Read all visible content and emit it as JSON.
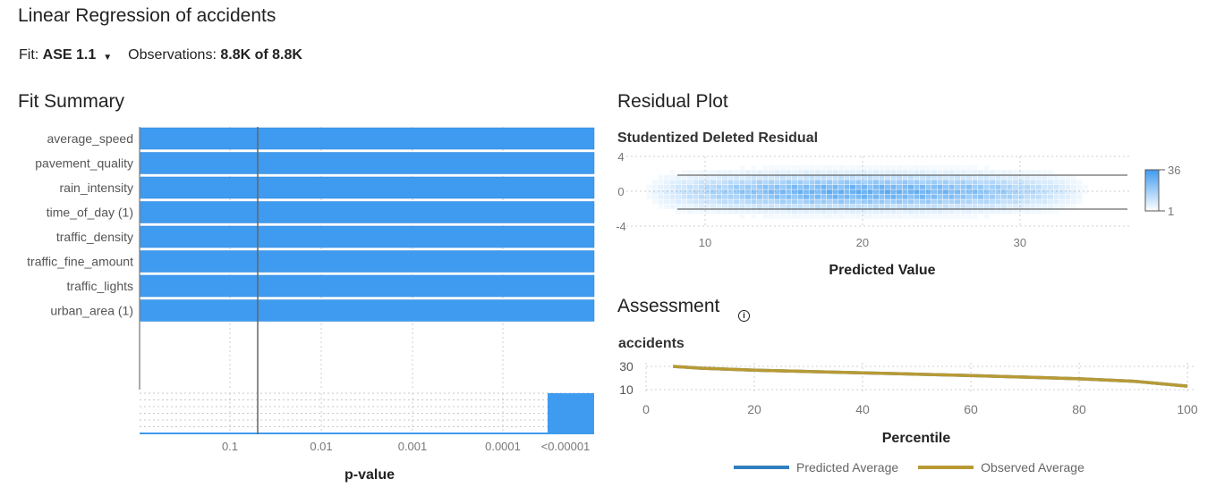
{
  "header": {
    "title": "Linear Regression of accidents",
    "fit_label": "Fit:",
    "fit_value": "ASE 1.1",
    "observations_label": "Observations:",
    "observations_value": "8.8K of 8.8K"
  },
  "fit_summary": {
    "title": "Fit Summary",
    "xlabel": "p-value",
    "ticks": [
      "0.1",
      "0.01",
      "0.001",
      "0.0001",
      "<0.00001"
    ],
    "variables": [
      "average_speed",
      "pavement_quality",
      "rain_intensity",
      "time_of_day (1)",
      "traffic_density",
      "traffic_fine_amount",
      "traffic_lights",
      "urban_area (1)"
    ],
    "bar_color": "#3f9bef"
  },
  "residual_plot": {
    "title": "Residual Plot",
    "ylabel": "Studentized Deleted Residual",
    "xlabel": "Predicted Value",
    "y_ticks": [
      "4",
      "0",
      "-4"
    ],
    "x_ticks": [
      "10",
      "20",
      "30"
    ],
    "legend_max": "36",
    "legend_min": "1"
  },
  "assessment": {
    "title": "Assessment",
    "ylabel": "accidents",
    "xlabel": "Percentile",
    "y_ticks": [
      "30",
      "10"
    ],
    "x_ticks": [
      "0",
      "20",
      "40",
      "60",
      "80",
      "100"
    ],
    "legend": [
      {
        "label": "Predicted Average",
        "color": "#2f7fc0"
      },
      {
        "label": "Observed Average",
        "color": "#b89a35"
      }
    ]
  },
  "chart_data": [
    {
      "type": "bar",
      "title": "Fit Summary",
      "xlabel": "p-value",
      "categories": [
        "average_speed",
        "pavement_quality",
        "rain_intensity",
        "time_of_day (1)",
        "traffic_density",
        "traffic_fine_amount",
        "traffic_lights",
        "urban_area (1)"
      ],
      "x_scale": "log-reciprocal",
      "x_ticks": [
        "0.1",
        "0.01",
        "0.001",
        "0.0001",
        "<0.00001"
      ],
      "values": [
        "<0.00001",
        "<0.00001",
        "<0.00001",
        "<0.00001",
        "<0.00001",
        "<0.00001",
        "<0.00001",
        "<0.00001"
      ],
      "reference_line_p": 0.05,
      "overview_bin_count": 8
    },
    {
      "type": "heatmap",
      "title": "Residual Plot",
      "xlabel": "Predicted Value",
      "ylabel": "Studentized Deleted Residual",
      "x_ticks": [
        10,
        20,
        30
      ],
      "y_ticks": [
        4,
        0,
        -4
      ],
      "xlim": [
        5,
        37
      ],
      "ylim": [
        -4,
        4
      ],
      "reference_lines_y": [
        2,
        -2
      ],
      "color_range": [
        1,
        36
      ]
    },
    {
      "type": "line",
      "title": "Assessment",
      "xlabel": "Percentile",
      "ylabel": "accidents",
      "xlim": [
        0,
        100
      ],
      "ylim": [
        10,
        30
      ],
      "series": [
        {
          "name": "Observed Average",
          "x": [
            5,
            10,
            20,
            30,
            40,
            50,
            60,
            70,
            80,
            90,
            100
          ],
          "y": [
            30,
            28.5,
            26.8,
            25.6,
            24.4,
            23.3,
            22.1,
            20.8,
            19.3,
            17.2,
            13
          ]
        },
        {
          "name": "Predicted Average",
          "x": [
            5,
            10,
            20,
            30,
            40,
            50,
            60,
            70,
            80,
            90,
            100
          ],
          "y": [
            30,
            28.5,
            26.8,
            25.6,
            24.4,
            23.3,
            22.1,
            20.8,
            19.3,
            17.2,
            13
          ]
        }
      ]
    }
  ]
}
